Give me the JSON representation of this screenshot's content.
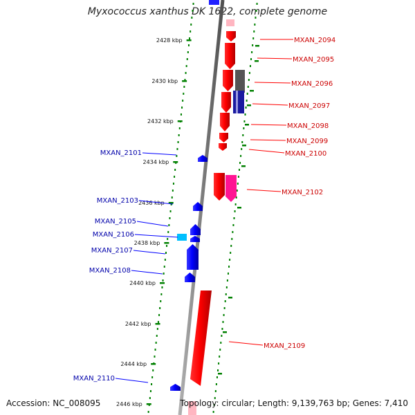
{
  "title": "Myxococcus xanthus DK 1622, complete genome",
  "accession": "Accession: NC_008095",
  "topology": "Topology: circular; Length: 9,139,763 bp; Genes: 7,410",
  "scale": {
    "unit": "kbp",
    "ticks": [
      "2428 kbp",
      "2430 kbp",
      "2432 kbp",
      "2434 kbp",
      "2436 kbp",
      "2438 kbp",
      "2440 kbp",
      "2442 kbp",
      "2444 kbp",
      "2446 kbp"
    ]
  },
  "colors": {
    "forward": "#ff0000",
    "reverse": "#0000ff",
    "forward_label": "#cc0000",
    "reverse_label": "#0000aa",
    "backbone": "#808080",
    "gc_track": "#008000"
  },
  "genes": {
    "forward": [
      "MXAN_2094",
      "MXAN_2095",
      "MXAN_2096",
      "MXAN_2097",
      "MXAN_2098",
      "MXAN_2099",
      "MXAN_2100",
      "MXAN_2102",
      "MXAN_2109"
    ],
    "reverse": [
      "MXAN_2101",
      "MXAN_2103",
      "MXAN_2105",
      "MXAN_2106",
      "MXAN_2107",
      "MXAN_2108",
      "MXAN_2110"
    ]
  }
}
